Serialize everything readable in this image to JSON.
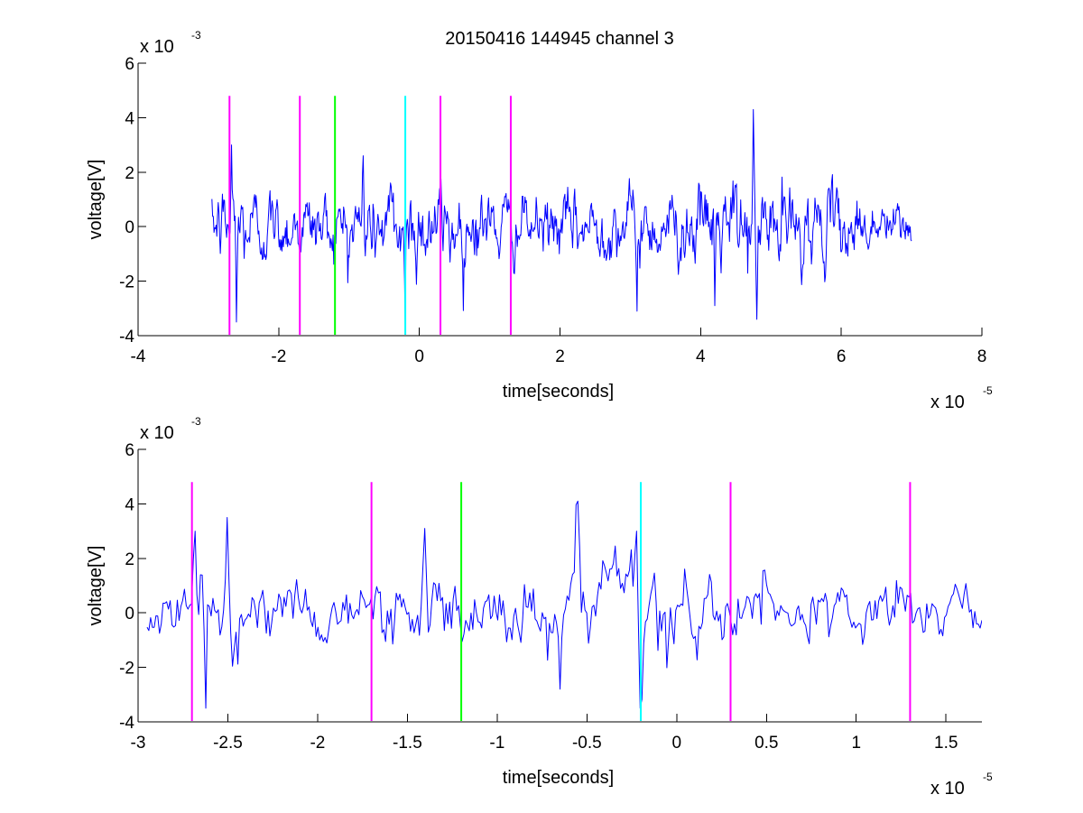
{
  "figure": {
    "title": "20150416 144945 channel 3",
    "colors": {
      "signal": "#0000ff",
      "magenta": "#ff00ff",
      "green": "#00ff00",
      "cyan": "#00ffff",
      "axes": "#000000"
    }
  },
  "chart_data": [
    {
      "type": "line",
      "xlabel": "time[seconds]",
      "ylabel": "voltage[V]",
      "xlim": [
        -4e-05,
        8e-05
      ],
      "ylim": [
        -0.004,
        0.006
      ],
      "x_ticks": [
        -4e-05,
        -2e-05,
        0,
        2e-05,
        4e-05,
        6e-05,
        8e-05
      ],
      "x_tick_labels": [
        "-4",
        "-2",
        "0",
        "2",
        "4",
        "6",
        "8"
      ],
      "y_ticks": [
        -0.004,
        -0.002,
        0,
        0.002,
        0.004,
        0.006
      ],
      "y_tick_labels": [
        "-4",
        "-2",
        "0",
        "2",
        "4",
        "6"
      ],
      "x_multiplier": {
        "base": "x 10",
        "exponent": "-5"
      },
      "y_multiplier": {
        "base": "x 10",
        "exponent": "-3"
      },
      "grid": false,
      "legend": "none",
      "series": [
        {
          "color": "#0000ff",
          "x_range": [
            -2.95e-05,
            7e-05
          ],
          "samples": 1000,
          "amplitude": 0.0012,
          "envelope": [
            [
              -2.95e-05,
              0.8
            ],
            [
              -2.7e-05,
              1.6
            ],
            [
              -2.2e-05,
              1.0
            ],
            [
              -1.2e-05,
              1.0
            ],
            [
              -2e-06,
              1.4
            ],
            [
              1.5e-05,
              0.9
            ],
            [
              2.8e-05,
              1.0
            ],
            [
              4e-05,
              1.1
            ],
            [
              4.8e-05,
              1.5
            ],
            [
              5.6e-05,
              1.1
            ],
            [
              7e-05,
              0.7
            ]
          ],
          "spikes": [
            [
              -2.67e-05,
              0.003
            ],
            [
              -2.6e-05,
              -0.0035
            ],
            [
              -2e-06,
              -0.0036
            ],
            [
              -8e-06,
              0.0026
            ],
            [
              3.1e-05,
              -0.0031
            ],
            [
              4.8e-05,
              -0.0034
            ],
            [
              4.75e-05,
              0.0043
            ],
            [
              4.2e-05,
              -0.0029
            ]
          ]
        }
      ],
      "markers": [
        {
          "x": -2.7e-05,
          "color": "#ff00ff",
          "ymax": 0.0048
        },
        {
          "x": -1.7e-05,
          "color": "#ff00ff",
          "ymax": 0.0048
        },
        {
          "x": -1.2e-05,
          "color": "#00ff00",
          "ymax": 0.0048
        },
        {
          "x": -2e-06,
          "color": "#00ffff",
          "ymax": 0.0048
        },
        {
          "x": 3e-06,
          "color": "#ff00ff",
          "ymax": 0.0048
        },
        {
          "x": 1.3e-05,
          "color": "#ff00ff",
          "ymax": 0.0048
        }
      ]
    },
    {
      "type": "line",
      "xlabel": "time[seconds]",
      "ylabel": "voltage[V]",
      "xlim": [
        -3e-05,
        1.7e-05
      ],
      "ylim": [
        -0.004,
        0.006
      ],
      "x_ticks": [
        -3e-05,
        -2.5e-05,
        -2e-05,
        -1.5e-05,
        -1e-05,
        -5e-06,
        0,
        5e-06,
        1e-05,
        1.5e-05
      ],
      "x_tick_labels": [
        "-3",
        "-2.5",
        "-2",
        "-1.5",
        "-1",
        "-0.5",
        "0",
        "0.5",
        "1",
        "1.5"
      ],
      "y_ticks": [
        -0.004,
        -0.002,
        0,
        0.002,
        0.004,
        0.006
      ],
      "y_tick_labels": [
        "-4",
        "-2",
        "0",
        "2",
        "4",
        "6"
      ],
      "x_multiplier": {
        "base": "x 10",
        "exponent": "-5"
      },
      "y_multiplier": {
        "base": "x 10",
        "exponent": "-3"
      },
      "grid": false,
      "legend": "none",
      "series": [
        {
          "color": "#0000ff",
          "x_range": [
            -2.95e-05,
            1.7e-05
          ],
          "samples": 470,
          "amplitude": 0.00115,
          "envelope": [
            [
              -2.95e-05,
              0.8
            ],
            [
              -2.65e-05,
              1.6
            ],
            [
              -2.2e-05,
              1.1
            ],
            [
              -1.2e-05,
              1.1
            ],
            [
              -6e-06,
              1.3
            ],
            [
              -2e-06,
              1.5
            ],
            [
              5e-06,
              1.0
            ],
            [
              1.7e-05,
              0.9
            ]
          ],
          "spikes": [
            [
              -2.68e-05,
              0.003
            ],
            [
              -2.62e-05,
              -0.0035
            ],
            [
              -2.5e-05,
              0.0035
            ],
            [
              -1.4e-05,
              0.0031
            ],
            [
              -5.5e-06,
              0.0041
            ],
            [
              -2.2e-06,
              0.003
            ],
            [
              -2e-06,
              -0.0035
            ],
            [
              -6.5e-06,
              -0.0028
            ]
          ]
        }
      ],
      "markers": [
        {
          "x": -2.7e-05,
          "color": "#ff00ff",
          "ymax": 0.0048
        },
        {
          "x": -1.7e-05,
          "color": "#ff00ff",
          "ymax": 0.0048
        },
        {
          "x": -1.2e-05,
          "color": "#00ff00",
          "ymax": 0.0048
        },
        {
          "x": -2e-06,
          "color": "#00ffff",
          "ymax": 0.0048
        },
        {
          "x": 3e-06,
          "color": "#ff00ff",
          "ymax": 0.0048
        },
        {
          "x": 1.3e-05,
          "color": "#ff00ff",
          "ymax": 0.0048
        }
      ]
    }
  ]
}
